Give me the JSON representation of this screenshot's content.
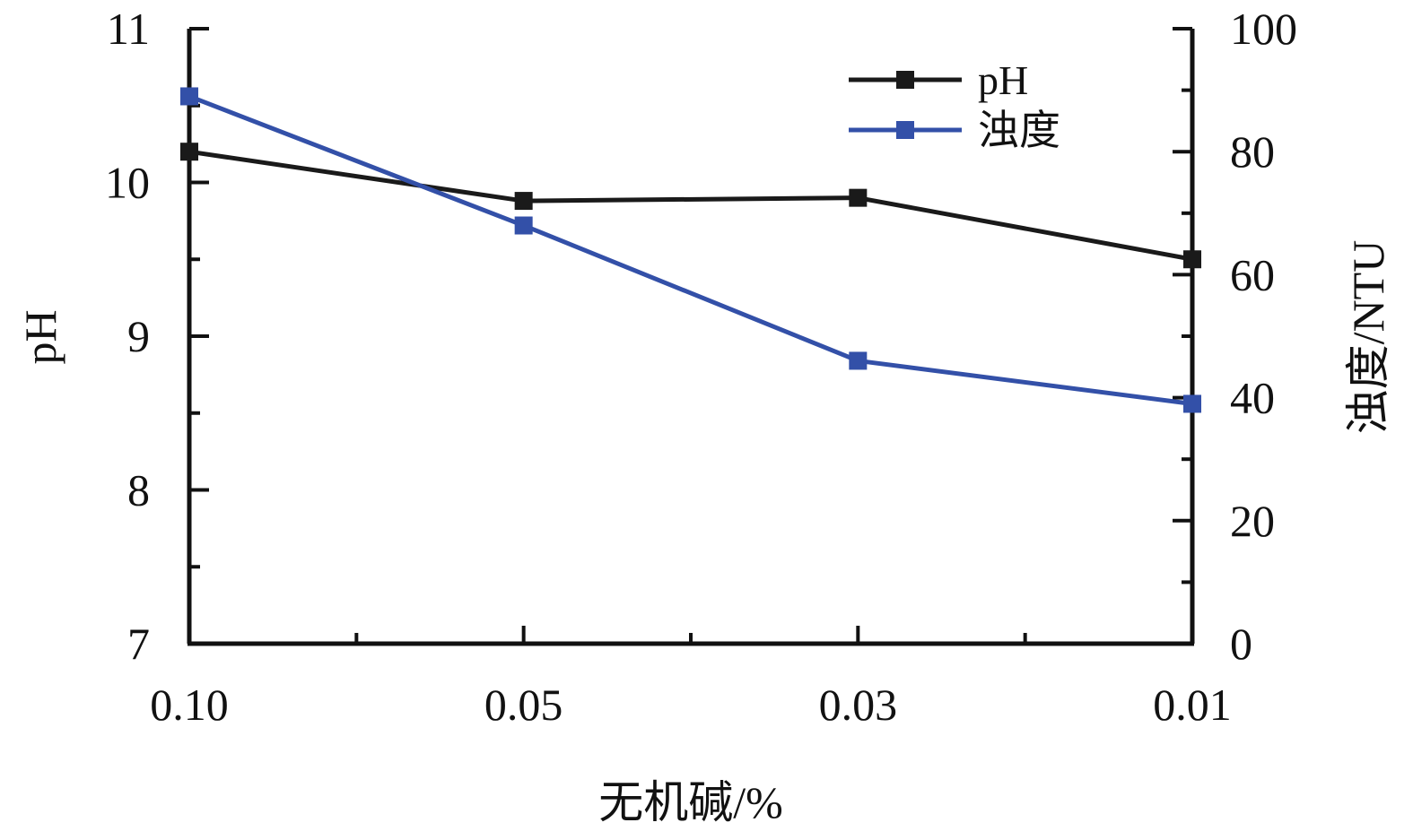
{
  "chart_data": {
    "type": "line",
    "title": "",
    "categories": [
      "0.10",
      "0.05",
      "0.03",
      "0.01"
    ],
    "xlabel": "无机碱/%",
    "ylabel_left": "pH",
    "ylabel_right": "浊度/NTU",
    "ylim_left": [
      7,
      11
    ],
    "ylim_right": [
      0,
      100
    ],
    "yticks_left": [
      "7",
      "8",
      "9",
      "10",
      "11"
    ],
    "yticks_right": [
      "0",
      "20",
      "40",
      "60",
      "80",
      "100"
    ],
    "legend_position": "top-right",
    "grid": false,
    "series": [
      {
        "name": "pH",
        "axis": "left",
        "color": "#1a1a1a",
        "values": [
          10.2,
          9.88,
          9.9,
          9.5
        ]
      },
      {
        "name": "浊度",
        "axis": "right",
        "color": "#3350a8",
        "values": [
          89,
          68,
          46,
          39
        ]
      }
    ]
  }
}
